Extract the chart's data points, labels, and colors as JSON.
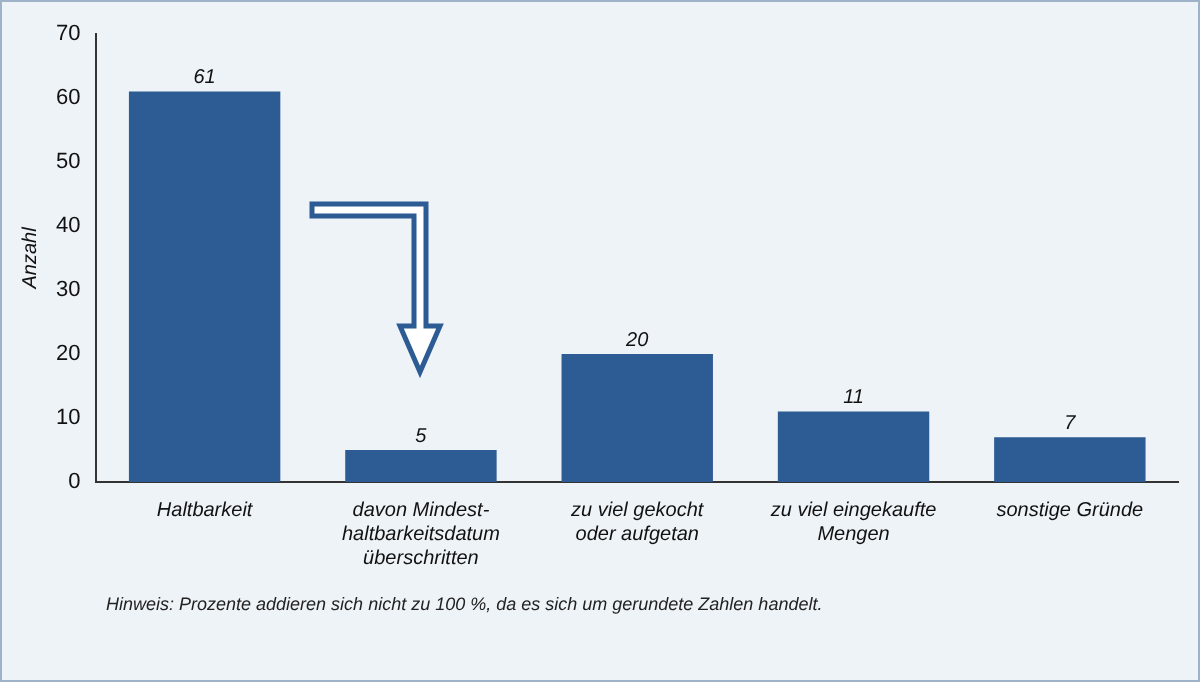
{
  "chart_data": {
    "type": "bar",
    "ylabel": "Anzahl",
    "categories": [
      "Haltbarkeit",
      "davon Mindest-\nhaltbarkeitsdatum\nüberschritten",
      "zu viel gekocht\noder aufgetan",
      "zu viel eingekaufte\nMengen",
      "sonstige Gründe"
    ],
    "values": [
      61,
      5,
      20,
      11,
      7
    ],
    "color": "#2d5b93",
    "ylim": [
      0,
      70
    ],
    "yticks": [
      0,
      10,
      20,
      30,
      40,
      50,
      60,
      70
    ],
    "grid": false,
    "legend": false,
    "data_labels": true,
    "annotations": [
      "Hinweis: Prozente addieren sich nicht zu 100 %, da es sich um gerundete Zahlen handelt."
    ]
  }
}
